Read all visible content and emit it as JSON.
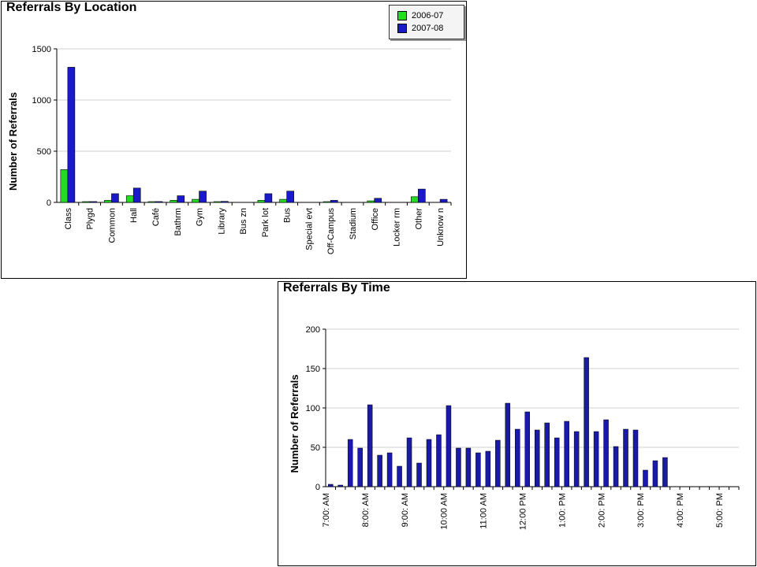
{
  "colors": {
    "series_2006": "#22dd22",
    "series_2007": "#1a1acc",
    "time_bar": "#1a1aa8",
    "grid": "#d0d0d0",
    "axis": "#000000"
  },
  "chart_data": [
    {
      "type": "bar",
      "title": "Referrals By Location",
      "ylabel": "Number of Referrals",
      "xlabel": "",
      "ylim": [
        0,
        1500
      ],
      "yticks": [
        "0",
        "500",
        "1000",
        "1500"
      ],
      "grid": true,
      "legend_position": "top-right",
      "categories": [
        "Class",
        "Plygd",
        "Common",
        "Hall",
        "Café",
        "Bathrm",
        "Gym",
        "Library",
        "Bus zn",
        "Park lot",
        "Bus",
        "Special evt",
        "Off-Campus",
        "Stadium",
        "Office",
        "Locker rm",
        "Other",
        "Unknow n"
      ],
      "series": [
        {
          "name": "2006-07",
          "values": [
            320,
            2,
            20,
            65,
            5,
            20,
            30,
            6,
            0,
            20,
            30,
            0,
            5,
            0,
            15,
            0,
            55,
            0
          ]
        },
        {
          "name": "2007-08",
          "values": [
            1320,
            8,
            85,
            140,
            8,
            65,
            110,
            10,
            0,
            85,
            110,
            0,
            20,
            0,
            40,
            0,
            130,
            30
          ]
        }
      ]
    },
    {
      "type": "bar",
      "title": "Referrals By Time",
      "ylabel": "Number of Referrals",
      "xlabel": "",
      "ylim": [
        0,
        200
      ],
      "yticks": [
        "0",
        "50",
        "100",
        "150",
        "200"
      ],
      "grid": true,
      "tick_labels": [
        "7:00: AM",
        "8:00: AM",
        "9:00: AM",
        "10:00 AM",
        "11:00 AM",
        "12:00 PM",
        "1:00: PM",
        "2:00: PM",
        "3:00: PM",
        "4:00: PM",
        "5:00: PM"
      ],
      "series": [
        {
          "name": "",
          "values": [
            3,
            2,
            60,
            49,
            104,
            40,
            43,
            26,
            62,
            30,
            60,
            66,
            103,
            49,
            49,
            43,
            45,
            59,
            106,
            73,
            95,
            72,
            81,
            62,
            83,
            70,
            164,
            70,
            85,
            51,
            73,
            72,
            21,
            33,
            37,
            0,
            0,
            0,
            0,
            0,
            0,
            0
          ]
        }
      ]
    }
  ]
}
